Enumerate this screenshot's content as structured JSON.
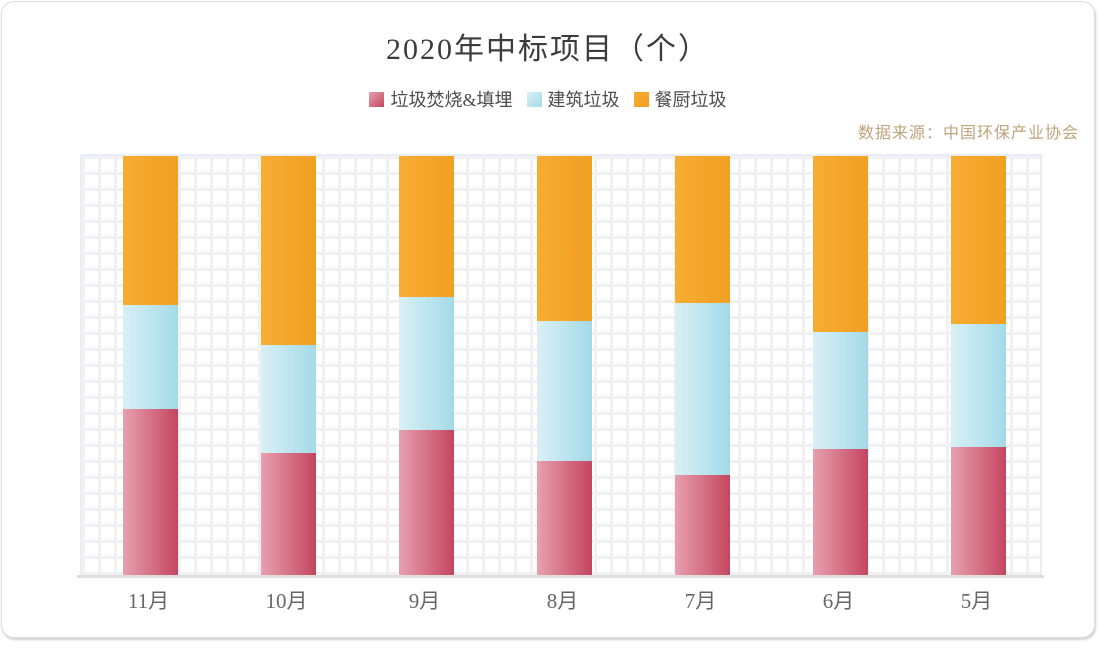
{
  "title": "2020年中标项目（个）",
  "source_note": "数据来源：中国环保产业协会",
  "colors": {
    "frame_border": "#dedede",
    "plot_border": "#e7eef7",
    "grid_line": "#f1f1f3",
    "axis_line": "#dfdddd",
    "title_text": "#3c3c3c",
    "legend_text": "#4d4d4d",
    "axis_label_text": "#666666",
    "source_text": "#bfa37c"
  },
  "chart_data": {
    "type": "bar",
    "stacked": true,
    "percent_stacked": true,
    "title": "2020年中标项目（个）",
    "xlabel": "",
    "ylabel": "",
    "ylim": [
      0,
      100
    ],
    "grid": true,
    "y_tick_labels_visible": false,
    "legend_position": "top",
    "categories": [
      "11月",
      "10月",
      "9月",
      "8月",
      "7月",
      "6月",
      "5月"
    ],
    "series": [
      {
        "name": "垃圾焚烧&填埋",
        "color_from": "#e7a0af",
        "color_to": "#c4455f",
        "values_pct": [
          39.7,
          29.1,
          34.5,
          27.2,
          23.8,
          30.0,
          30.6
        ]
      },
      {
        "name": "建筑垃圾",
        "color_from": "#d9f0f5",
        "color_to": "#a3dae8",
        "values_pct": [
          24.8,
          25.9,
          31.9,
          33.4,
          41.2,
          27.9,
          29.3
        ]
      },
      {
        "name": "餐厨垃圾",
        "color_from": "#f7ac33",
        "color_to": "#f1a021",
        "values_pct": [
          35.5,
          45.0,
          33.6,
          39.4,
          35.0,
          42.1,
          40.1
        ]
      }
    ]
  }
}
